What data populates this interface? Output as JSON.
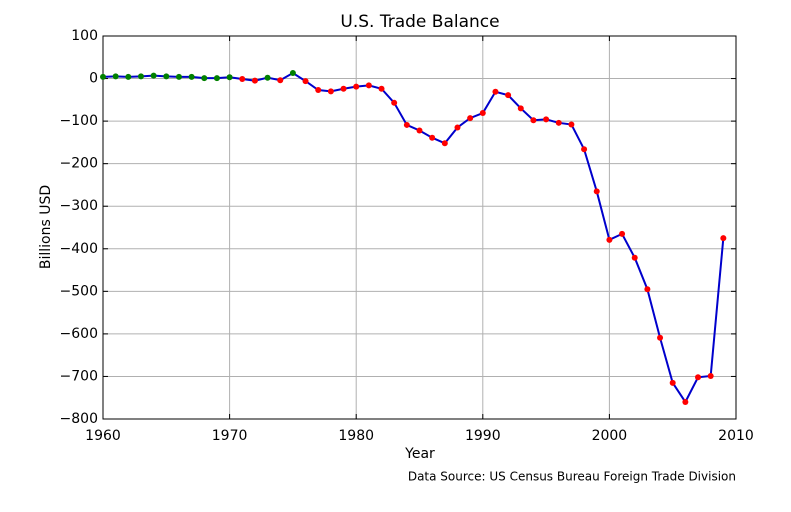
{
  "chart_data": {
    "type": "line",
    "title": "U.S. Trade Balance",
    "x_label": "Year",
    "y_label": "Billions USD",
    "annotation": "Data Source: US Census Bureau Foreign Trade Division",
    "x": [
      1960,
      1961,
      1962,
      1963,
      1964,
      1965,
      1966,
      1967,
      1968,
      1969,
      1970,
      1971,
      1972,
      1973,
      1974,
      1975,
      1976,
      1977,
      1978,
      1979,
      1980,
      1981,
      1982,
      1983,
      1984,
      1985,
      1986,
      1987,
      1988,
      1989,
      1990,
      1991,
      1992,
      1993,
      1994,
      1995,
      1996,
      1997,
      1998,
      1999,
      2000,
      2001,
      2002,
      2003,
      2004,
      2005,
      2006,
      2007,
      2008,
      2009
    ],
    "series": [
      {
        "color": "#0000cc",
        "positive_marker_color": "#008000",
        "negative_marker_color": "#ff0000",
        "values": [
          4,
          5,
          4,
          5,
          7,
          5,
          4,
          4,
          1,
          1,
          3,
          -1,
          -5,
          2,
          -4,
          13,
          -6,
          -27,
          -30,
          -24,
          -19,
          -16,
          -24,
          -57,
          -109,
          -122,
          -139,
          -152,
          -115,
          -93,
          -81,
          -31,
          -39,
          -70,
          -98,
          -96,
          -104,
          -108,
          -166,
          -265,
          -379,
          -365,
          -421,
          -495,
          -609,
          -715,
          -760,
          -702,
          -699,
          -375
        ]
      }
    ],
    "xlim": [
      1960,
      2010
    ],
    "xticks": [
      1960,
      1970,
      1980,
      1990,
      2000,
      2010
    ],
    "ylim": [
      -800,
      100
    ],
    "yticks": [
      {
        "value": -800,
        "label": "−800"
      },
      {
        "value": -700,
        "label": "−700"
      },
      {
        "value": -600,
        "label": "−600"
      },
      {
        "value": -500,
        "label": "−500"
      },
      {
        "value": -400,
        "label": "−400"
      },
      {
        "value": -300,
        "label": "−300"
      },
      {
        "value": -200,
        "label": "−200"
      },
      {
        "value": -100,
        "label": "−100"
      },
      0,
      100
    ],
    "grid": true
  }
}
